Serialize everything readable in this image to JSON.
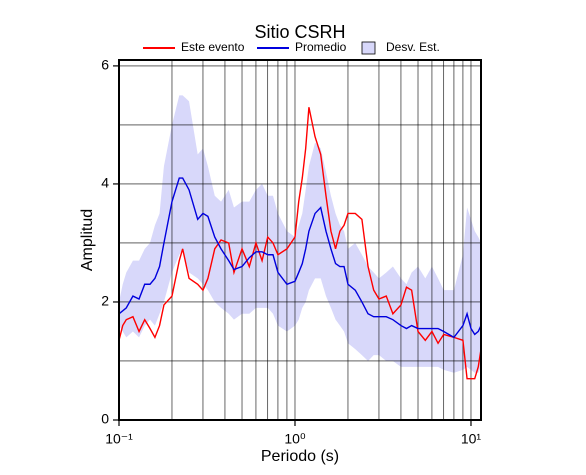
{
  "chart_data": {
    "type": "line",
    "title": "Sitio CSRH",
    "xlabel": "Periodo (s)",
    "ylabel": "Amplitud",
    "xlog": true,
    "xlim": [
      0.1,
      11.4
    ],
    "ylim": [
      0,
      6.1
    ],
    "xticks": [
      {
        "value": 0.1,
        "label": "10⁻¹"
      },
      {
        "value": 1,
        "label": "10⁰"
      },
      {
        "value": 10,
        "label": "10¹"
      }
    ],
    "xminor": [
      0.2,
      0.3,
      0.4,
      0.5,
      0.6,
      0.7,
      0.8,
      0.9,
      2,
      3,
      4,
      5,
      6,
      7,
      8,
      9
    ],
    "yticks": [
      0,
      2,
      4,
      6
    ],
    "yminor": [
      1,
      3,
      5
    ],
    "grid": true,
    "legend": "top",
    "x": [
      0.1,
      0.105,
      0.11,
      0.12,
      0.13,
      0.14,
      0.15,
      0.16,
      0.17,
      0.18,
      0.2,
      0.22,
      0.23,
      0.25,
      0.28,
      0.3,
      0.32,
      0.35,
      0.38,
      0.42,
      0.45,
      0.5,
      0.55,
      0.6,
      0.65,
      0.7,
      0.75,
      0.8,
      0.9,
      1.0,
      1.05,
      1.1,
      1.15,
      1.2,
      1.3,
      1.4,
      1.5,
      1.6,
      1.7,
      1.8,
      1.9,
      2.0,
      2.2,
      2.4,
      2.6,
      2.8,
      3.0,
      3.3,
      3.6,
      4.0,
      4.3,
      4.6,
      5.0,
      5.5,
      6.0,
      6.5,
      7.0,
      8.0,
      9.0,
      9.5,
      10,
      10.5,
      11,
      11.4
    ],
    "series": [
      {
        "name": "Este evento",
        "color": "#ff0000",
        "values": [
          1.35,
          1.6,
          1.7,
          1.75,
          1.5,
          1.7,
          1.55,
          1.4,
          1.6,
          1.95,
          2.1,
          2.7,
          2.9,
          2.4,
          2.3,
          2.2,
          2.4,
          2.9,
          3.05,
          3.0,
          2.5,
          2.9,
          2.6,
          3.0,
          2.7,
          3.1,
          3.0,
          2.8,
          2.9,
          3.1,
          3.7,
          4.1,
          4.6,
          5.3,
          4.8,
          4.5,
          3.8,
          3.2,
          2.9,
          3.2,
          3.3,
          3.5,
          3.5,
          3.4,
          2.6,
          2.2,
          2.05,
          2.1,
          1.8,
          1.95,
          2.25,
          2.2,
          1.5,
          1.35,
          1.5,
          1.3,
          1.45,
          1.4,
          1.35,
          0.7,
          0.7,
          0.7,
          0.9,
          1.2
        ]
      },
      {
        "name": "Promedio",
        "color": "#0000dd",
        "values": [
          1.8,
          1.85,
          1.9,
          2.1,
          2.05,
          2.3,
          2.3,
          2.4,
          2.6,
          3.0,
          3.7,
          4.1,
          4.1,
          3.9,
          3.4,
          3.5,
          3.45,
          3.1,
          2.9,
          2.7,
          2.55,
          2.6,
          2.75,
          2.85,
          2.85,
          2.8,
          2.8,
          2.5,
          2.3,
          2.35,
          2.5,
          2.65,
          2.9,
          3.2,
          3.5,
          3.6,
          3.2,
          2.9,
          2.65,
          2.6,
          2.6,
          2.3,
          2.2,
          2.0,
          1.8,
          1.75,
          1.75,
          1.75,
          1.7,
          1.6,
          1.55,
          1.6,
          1.55,
          1.55,
          1.55,
          1.55,
          1.5,
          1.4,
          1.6,
          1.8,
          1.55,
          1.45,
          1.5,
          1.6
        ]
      },
      {
        "name": "Desv. Est.",
        "color": "#d8d8fa",
        "kind": "band",
        "upper": [
          2.0,
          2.3,
          2.5,
          2.7,
          2.7,
          2.9,
          3.0,
          3.3,
          3.5,
          4.3,
          5.0,
          5.5,
          5.5,
          5.4,
          4.5,
          4.6,
          4.3,
          3.8,
          3.7,
          3.9,
          3.6,
          3.7,
          3.7,
          3.9,
          4.0,
          3.8,
          3.8,
          3.5,
          3.2,
          3.1,
          3.3,
          3.5,
          3.9,
          4.3,
          4.7,
          4.6,
          4.2,
          3.8,
          3.5,
          3.3,
          3.2,
          2.9,
          3.0,
          2.8,
          2.6,
          2.5,
          2.4,
          2.5,
          2.6,
          2.4,
          2.3,
          2.5,
          2.6,
          2.4,
          2.6,
          2.4,
          2.2,
          2.2,
          2.8,
          3.6,
          3.4,
          3.2,
          3.1,
          3.0
        ],
        "lower": [
          1.6,
          1.5,
          1.4,
          1.5,
          1.4,
          1.6,
          1.7,
          1.6,
          1.8,
          2.0,
          2.5,
          2.8,
          2.9,
          2.5,
          2.4,
          2.3,
          2.2,
          2.0,
          1.9,
          1.8,
          1.7,
          1.8,
          1.8,
          1.9,
          1.9,
          1.9,
          1.8,
          1.6,
          1.5,
          1.6,
          1.7,
          1.9,
          2.0,
          2.2,
          2.4,
          2.4,
          2.1,
          1.9,
          1.7,
          1.6,
          1.5,
          1.3,
          1.2,
          1.1,
          1.0,
          1.1,
          1.1,
          1.0,
          1.0,
          0.9,
          0.9,
          0.9,
          0.9,
          0.9,
          0.9,
          0.9,
          0.85,
          0.8,
          0.85,
          0.9,
          0.85,
          0.8,
          0.8,
          0.9
        ]
      }
    ]
  }
}
